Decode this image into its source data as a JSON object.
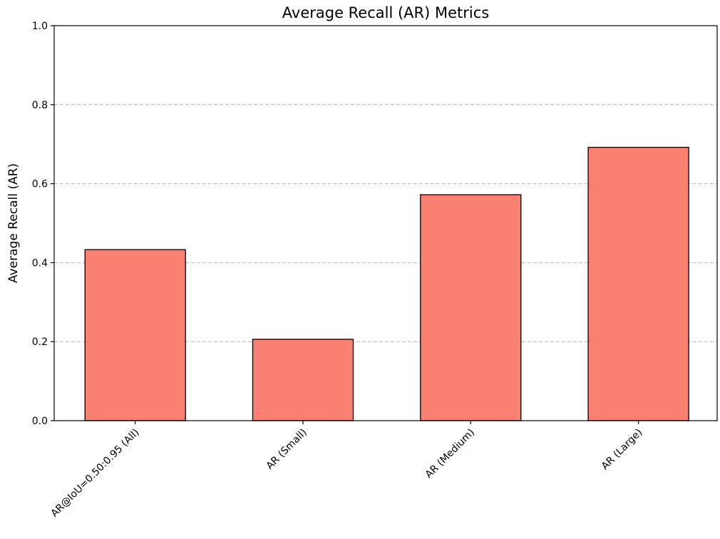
{
  "chart_data": {
    "type": "bar",
    "title": "Average Recall (AR) Metrics",
    "xlabel": "",
    "ylabel": "Average Recall (AR)",
    "categories": [
      "AR@IoU=0.50:0.95 (All)",
      "AR (Small)",
      "AR (Medium)",
      "AR (Large)"
    ],
    "values": [
      0.433,
      0.206,
      0.572,
      0.692
    ],
    "ylim": [
      0,
      1.0
    ],
    "yticks": [
      "0.0",
      "0.2",
      "0.4",
      "0.6",
      "0.8",
      "1.0"
    ],
    "grid": "horizontal dashed",
    "bar_color": "#fa8072",
    "edge_color": "#000000"
  }
}
